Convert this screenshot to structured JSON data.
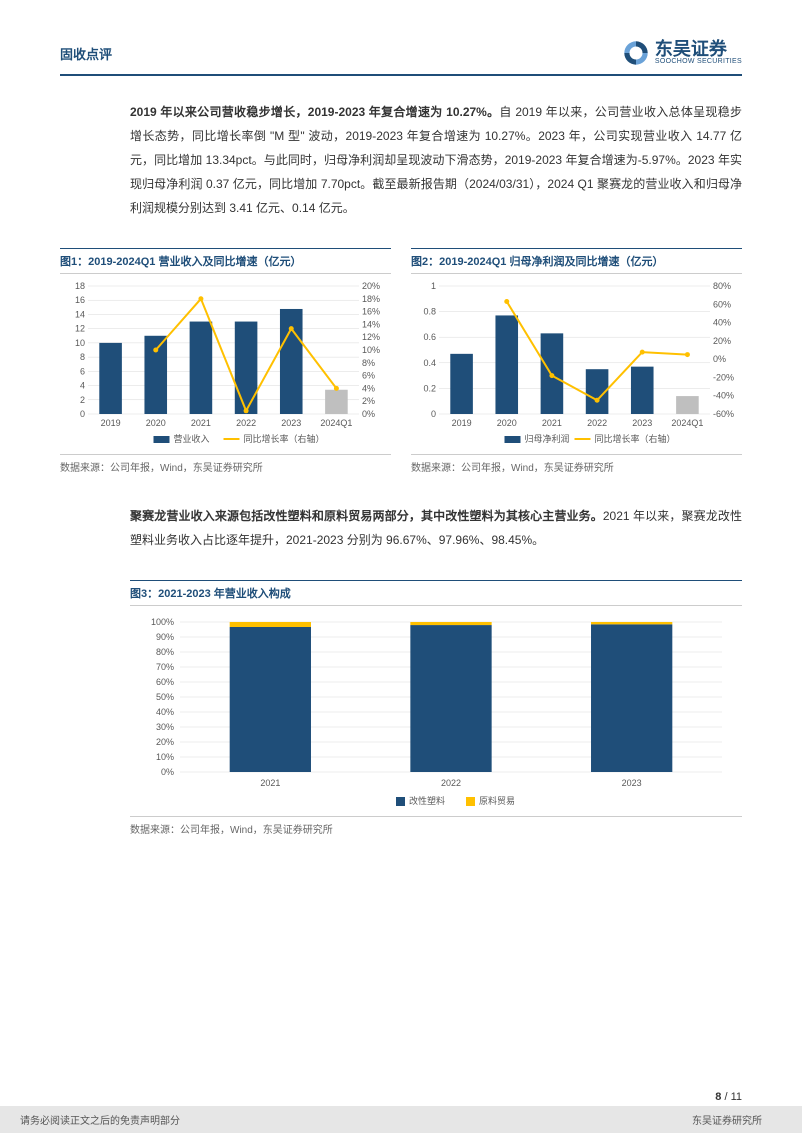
{
  "header": {
    "category": "固收点评",
    "logo_cn": "东吴证券",
    "logo_en": "SOOCHOW SECURITIES",
    "brand_color": "#1f4e79"
  },
  "para1_bold": "2019 年以来公司营收稳步增长，2019-2023 年复合增速为 10.27%。",
  "para1_rest": "自 2019 年以来，公司营业收入总体呈现稳步增长态势，同比增长率倒 \"M 型\" 波动，2019-2023 年复合增速为 10.27%。2023 年，公司实现营业收入 14.77 亿元，同比增加 13.34pct。与此同时，归母净利润却呈现波动下滑态势，2019-2023 年复合增速为-5.97%。2023 年实现归母净利润 0.37 亿元，同比增加 7.70pct。截至最新报告期（2024/03/31），2024 Q1 聚赛龙的营业收入和归母净利润规模分别达到 3.41 亿元、0.14 亿元。",
  "para2_bold": "聚赛龙营业收入来源包括改性塑料和原料贸易两部分，其中改性塑料为其核心主营业务。",
  "para2_rest": "2021 年以来，聚赛龙改性塑料业务收入占比逐年提升，2021-2023 分别为 96.67%、97.96%、98.45%。",
  "chart1": {
    "title": "图1：2019-2024Q1 营业收入及同比增速（亿元）",
    "type": "bar+line",
    "categories": [
      "2019",
      "2020",
      "2021",
      "2022",
      "2023",
      "2024Q1"
    ],
    "bar_values": [
      10.0,
      11.0,
      13.0,
      13.0,
      14.77,
      3.41
    ],
    "line_values": [
      null,
      10,
      18,
      0.5,
      13.34,
      4
    ],
    "y1_lim": [
      0,
      18
    ],
    "y1_step": 2,
    "y2_lim": [
      0,
      20
    ],
    "y2_step": 2,
    "y2_suffix": "%",
    "bar_color": "#1f4e79",
    "bar_color_last": "#bfbfbf",
    "line_color": "#ffc000",
    "legend_bar": "营业收入",
    "legend_line": "同比增长率（右轴）",
    "source": "数据来源：公司年报，Wind，东吴证券研究所",
    "axis_color": "#d9d9d9",
    "text_color": "#595959",
    "fontsize": 9
  },
  "chart2": {
    "title": "图2：2019-2024Q1 归母净利润及同比增速（亿元）",
    "type": "bar+line",
    "categories": [
      "2019",
      "2020",
      "2021",
      "2022",
      "2023",
      "2024Q1"
    ],
    "bar_values": [
      0.47,
      0.77,
      0.63,
      0.35,
      0.37,
      0.14
    ],
    "line_values": [
      null,
      63,
      -18,
      -45,
      7.7,
      5
    ],
    "y1_lim": [
      0,
      1.0
    ],
    "y1_step": 0.2,
    "y2_lim": [
      -60,
      80
    ],
    "y2_step": 20,
    "y2_suffix": "%",
    "bar_color": "#1f4e79",
    "bar_color_last": "#bfbfbf",
    "line_color": "#ffc000",
    "legend_bar": "归母净利润",
    "legend_line": "同比增长率（右轴）",
    "source": "数据来源：公司年报，Wind，东吴证券研究所",
    "axis_color": "#d9d9d9",
    "text_color": "#595959",
    "fontsize": 9
  },
  "chart3": {
    "title": "图3：2021-2023 年营业收入构成",
    "type": "stacked-bar",
    "categories": [
      "2021",
      "2022",
      "2023"
    ],
    "series": [
      {
        "name": "改性塑料",
        "color": "#1f4e79",
        "values": [
          96.67,
          97.96,
          98.45
        ]
      },
      {
        "name": "原料贸易",
        "color": "#ffc000",
        "values": [
          3.33,
          2.04,
          1.55
        ]
      }
    ],
    "y_lim": [
      0,
      100
    ],
    "y_step": 10,
    "y_suffix": "%",
    "source": "数据来源：公司年报，Wind，东吴证券研究所",
    "axis_color": "#d9d9d9",
    "text_color": "#595959",
    "fontsize": 9
  },
  "page_num": {
    "current": "8",
    "total": "11",
    "sep": " / "
  },
  "footer": {
    "disclaimer": "请务必阅读正文之后的免责声明部分",
    "org": "东吴证券研究所"
  }
}
